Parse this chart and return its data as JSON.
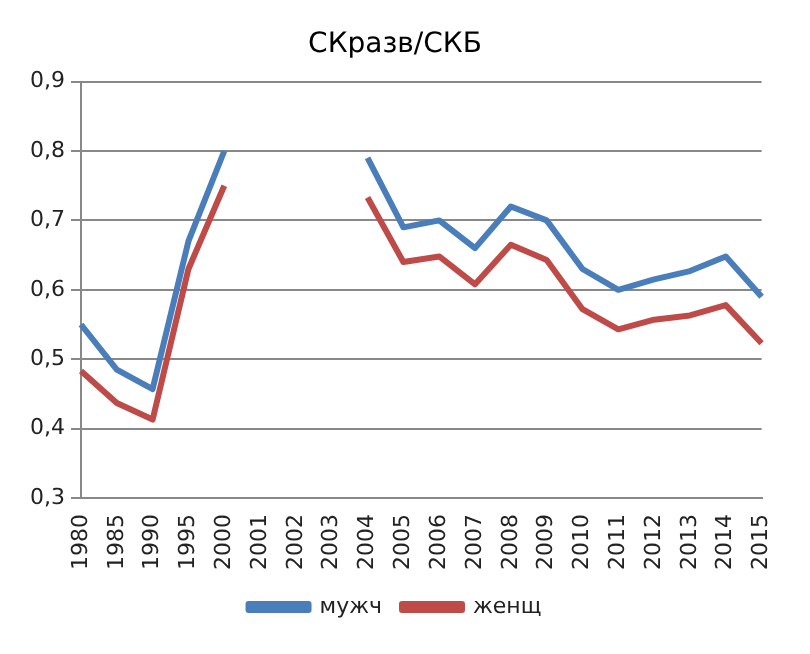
{
  "chart_data": {
    "type": "line",
    "title": "СКразв/СКБ",
    "categories": [
      "1980",
      "1985",
      "1990",
      "1995",
      "2000",
      "2001",
      "2002",
      "2003",
      "2004",
      "2005",
      "2006",
      "2007",
      "2008",
      "2009",
      "2010",
      "2011",
      "2012",
      "2013",
      "2014",
      "2015"
    ],
    "series": [
      {
        "name": "мужч",
        "color": "#4a7ebb",
        "values": [
          0.55,
          0.485,
          0.457,
          0.67,
          0.8,
          null,
          null,
          null,
          0.79,
          0.69,
          0.7,
          0.66,
          0.72,
          0.7,
          0.63,
          0.6,
          0.615,
          0.627,
          0.648,
          0.59
        ]
      },
      {
        "name": "женщ",
        "color": "#be4b48",
        "values": [
          0.483,
          0.437,
          0.413,
          0.63,
          0.75,
          null,
          null,
          null,
          0.733,
          0.64,
          0.648,
          0.608,
          0.665,
          0.643,
          0.572,
          0.543,
          0.557,
          0.563,
          0.578,
          0.523
        ]
      }
    ],
    "ylim": [
      0.3,
      0.9
    ],
    "yticks": [
      {
        "value": 0.3,
        "label": "0,3"
      },
      {
        "value": 0.4,
        "label": "0,4"
      },
      {
        "value": 0.5,
        "label": "0,5"
      },
      {
        "value": 0.6,
        "label": "0,6"
      },
      {
        "value": 0.7,
        "label": "0,7"
      },
      {
        "value": 0.8,
        "label": "0,8"
      },
      {
        "value": 0.9,
        "label": "0,9"
      }
    ],
    "grid": "y",
    "legend": "bottom",
    "marker": "none",
    "line_style": "solid"
  }
}
